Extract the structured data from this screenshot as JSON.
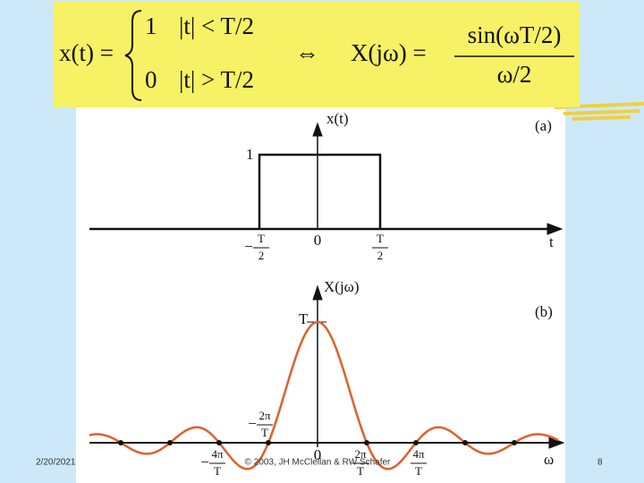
{
  "formula": {
    "lhs": "x(t) =",
    "case1_value": "1",
    "case1_cond": "|t| < T/2",
    "case2_value": "0",
    "case2_cond": "|t| > T/2",
    "equiv": "⇔",
    "rhs_lhs": "X(jω) =",
    "rhs_num": "sin(ωT/2)",
    "rhs_den": "ω/2"
  },
  "plot_a": {
    "axis_label": "x(t)",
    "panel": "(a)",
    "height_label": "1",
    "left_edge": {
      "sign": "−",
      "num": "T",
      "den": "2"
    },
    "origin": "0",
    "right_edge": {
      "num": "T",
      "den": "2"
    },
    "x_label": "t"
  },
  "plot_b": {
    "axis_label": "X(jω)",
    "panel": "(b)",
    "peak_label": "T",
    "first_zero_neg": {
      "sign": "−",
      "num": "2π",
      "den": "T"
    },
    "second_zero_neg": {
      "sign": "−",
      "num": "4π",
      "den": "T"
    },
    "origin": "0",
    "first_zero_pos": {
      "num": "2π",
      "den": "T"
    },
    "second_zero_pos": {
      "num": "4π",
      "den": "T"
    },
    "x_label": "ω"
  },
  "footer": {
    "date": "2/20/2021",
    "copyright": "© 2003, JH McClellan & RW Schafer",
    "page": "8"
  }
}
